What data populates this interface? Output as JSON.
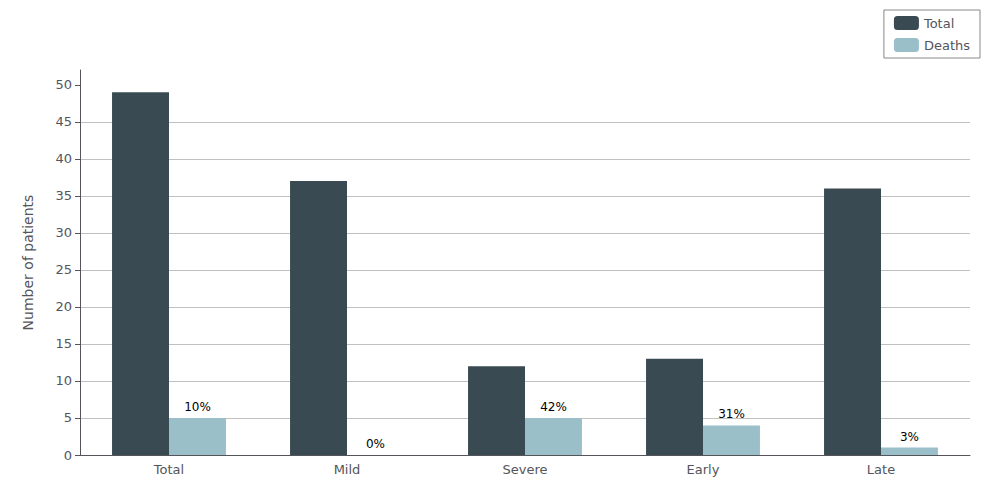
{
  "chart_data": {
    "type": "bar",
    "categories": [
      "Total",
      "Mild",
      "Severe",
      "Early",
      "Late"
    ],
    "series": [
      {
        "name": "Total",
        "color": "#3a4a52",
        "values": [
          49,
          37,
          12,
          13,
          36
        ]
      },
      {
        "name": "Deaths",
        "color": "#9bbfc9",
        "values": [
          5,
          0,
          5,
          4,
          1
        ],
        "annotations": [
          "10%",
          "0%",
          "42%",
          "31%",
          "3%"
        ]
      }
    ],
    "ylabel": "Number of patients",
    "ylim": [
      0,
      52
    ],
    "yticks": [
      0,
      5,
      10,
      15,
      20,
      25,
      30,
      35,
      40,
      45,
      50
    ],
    "grid": true,
    "legend": "upper right"
  }
}
